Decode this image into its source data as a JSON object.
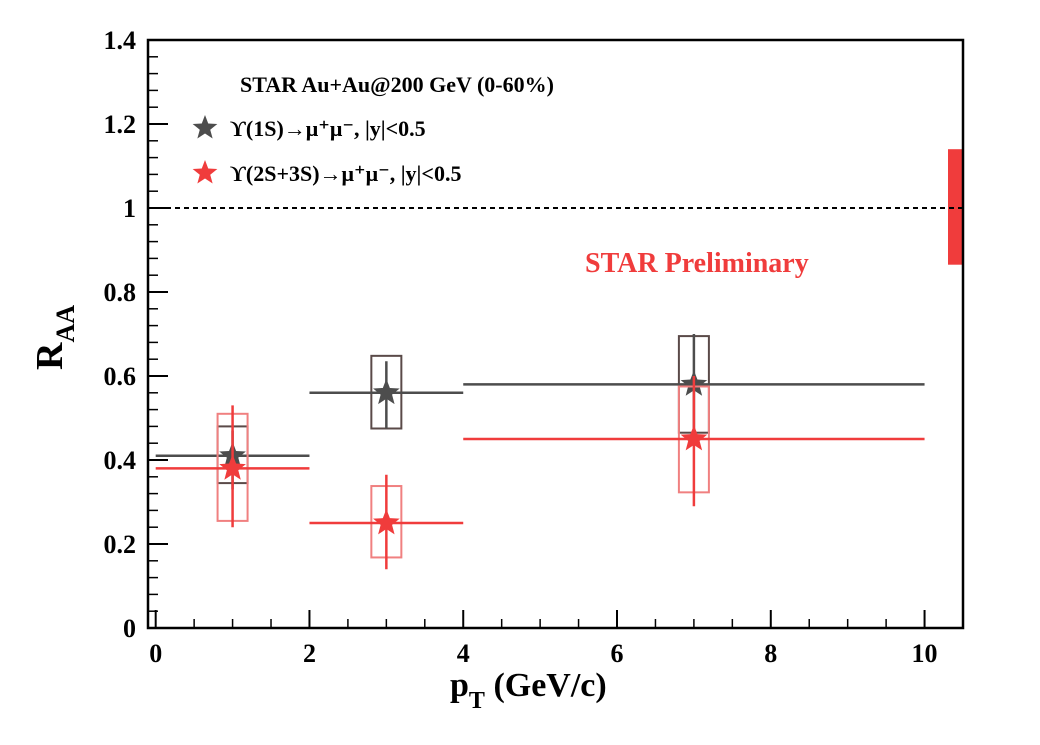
{
  "chart_data": {
    "type": "scatter",
    "title": "STAR Au+Au@200 GeV (0-60%)",
    "annotation": "STAR Preliminary",
    "xlabel": {
      "main": "p",
      "sub": "T",
      "rest": " (GeV/c)"
    },
    "ylabel": {
      "main": "R",
      "sub": "AA"
    },
    "xlim": [
      -0.1,
      10.5
    ],
    "ylim": [
      0,
      1.4
    ],
    "x_ticks": [
      0,
      2,
      4,
      6,
      8,
      10
    ],
    "x_tick_labels": [
      "0",
      "2",
      "4",
      "6",
      "8",
      "10"
    ],
    "y_ticks": [
      0,
      0.2,
      0.4,
      0.6,
      0.8,
      1.0,
      1.2,
      1.4
    ],
    "y_tick_labels": [
      "0",
      "0.2",
      "0.4",
      "0.6",
      "0.8",
      "1",
      "1.2",
      "1.4"
    ],
    "reference_line": {
      "y": 1.0,
      "style": "dashed"
    },
    "global_uncertainty_band": {
      "y_low": 0.865,
      "y_high": 1.14,
      "color": "#f03c3c"
    },
    "series": [
      {
        "name": "1S",
        "legend_label": "ϒ(1S)→μ⁺μ⁻, |y|<0.5",
        "color": "#4d4d4d",
        "box_color": "#5a4a48",
        "points": [
          {
            "x": 1,
            "y": 0.41,
            "x_low": 0,
            "x_high": 2,
            "stat_low": 0.33,
            "stat_high": 0.47,
            "sys_low": 0.345,
            "sys_high": 0.48
          },
          {
            "x": 3,
            "y": 0.56,
            "x_low": 2,
            "x_high": 4,
            "stat_low": 0.475,
            "stat_high": 0.635,
            "sys_low": 0.475,
            "sys_high": 0.648
          },
          {
            "x": 7,
            "y": 0.58,
            "x_low": 4,
            "x_high": 10,
            "stat_low": 0.45,
            "stat_high": 0.7,
            "sys_low": 0.465,
            "sys_high": 0.695
          }
        ]
      },
      {
        "name": "2S+3S",
        "legend_label": "ϒ(2S+3S)→μ⁺μ⁻, |y|<0.5",
        "color": "#f03c3c",
        "box_color": "#f08080",
        "points": [
          {
            "x": 1,
            "y": 0.38,
            "x_low": 0,
            "x_high": 2,
            "stat_low": 0.24,
            "stat_high": 0.53,
            "sys_low": 0.255,
            "sys_high": 0.51
          },
          {
            "x": 3,
            "y": 0.25,
            "x_low": 2,
            "x_high": 4,
            "stat_low": 0.14,
            "stat_high": 0.365,
            "sys_low": 0.168,
            "sys_high": 0.338
          },
          {
            "x": 7,
            "y": 0.45,
            "x_low": 4,
            "x_high": 10,
            "stat_low": 0.29,
            "stat_high": 0.6,
            "sys_low": 0.323,
            "sys_high": 0.575
          }
        ]
      }
    ]
  }
}
